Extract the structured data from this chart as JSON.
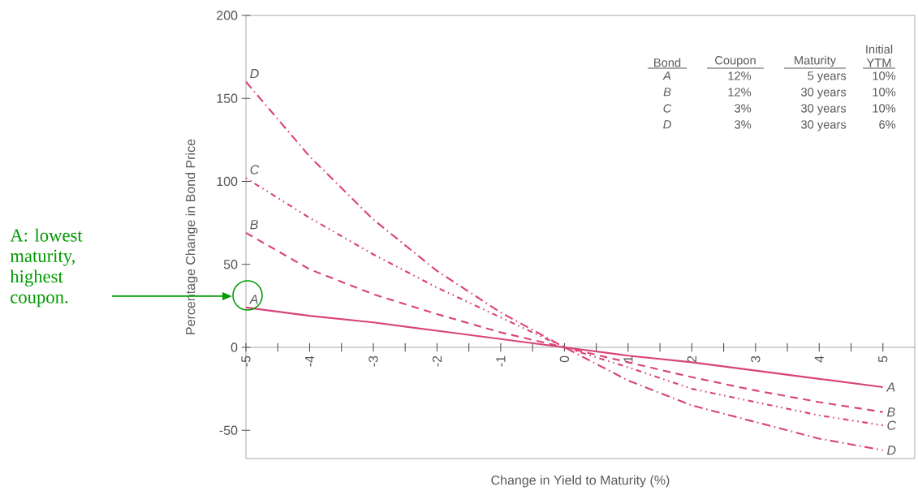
{
  "chart_data": {
    "type": "line",
    "xlabel": "Change in Yield to Maturity (%)",
    "ylabel": "Percentage Change in Bond Price",
    "x": [
      -5,
      -4,
      -3,
      -2,
      -1,
      0,
      1,
      2,
      3,
      4,
      5
    ],
    "series": [
      {
        "name": "A",
        "color": "#d9437a",
        "line_style": "solid",
        "values": [
          24,
          19,
          15,
          10,
          5,
          0,
          -5,
          -9,
          -14,
          -19,
          -24
        ]
      },
      {
        "name": "B",
        "color": "#d9437a",
        "line_style": "dashed",
        "values": [
          69,
          47,
          32,
          20,
          9,
          0,
          -9,
          -18,
          -26,
          -33,
          -39
        ]
      },
      {
        "name": "C",
        "color": "#d9437a",
        "line_style": "dotted",
        "values": [
          102,
          78,
          56,
          36,
          18,
          0,
          -12,
          -25,
          -33,
          -41,
          -47
        ]
      },
      {
        "name": "D",
        "color": "#d9437a",
        "line_style": "dashdot",
        "values": [
          160,
          115,
          77,
          46,
          21,
          0,
          -20,
          -35,
          -45,
          -55,
          -62
        ]
      }
    ],
    "xlim": [
      -5,
      5.5
    ],
    "ylim": [
      -67,
      200
    ],
    "xticks": [
      -5,
      {
        "value": -4.5,
        "label": null
      },
      -4,
      {
        "value": -3.5,
        "label": null
      },
      -3,
      {
        "value": -2.5,
        "label": null
      },
      -2,
      {
        "value": -1.5,
        "label": null
      },
      -1,
      {
        "value": -0.5,
        "label": null
      },
      0,
      {
        "value": 0.5,
        "label": null
      },
      1,
      {
        "value": 1.5,
        "label": null
      },
      2,
      {
        "value": 2.5,
        "label": null
      },
      3,
      {
        "value": 3.5,
        "label": null
      },
      4,
      {
        "value": 4.5,
        "label": null
      },
      5
    ],
    "yticks": [
      -50,
      0,
      50,
      100,
      150,
      200
    ],
    "annotations": [
      "A: lowest maturity, highest coupon.",
      "Bond",
      "Coupon",
      "Maturity",
      "Initial YTM",
      "A",
      "12%",
      "5 years",
      "10%",
      "B",
      "12%",
      "30 years",
      "10%",
      "C",
      "3%",
      "30 years",
      "10%",
      "D",
      "3%",
      "30 years",
      "6%"
    ]
  }
}
